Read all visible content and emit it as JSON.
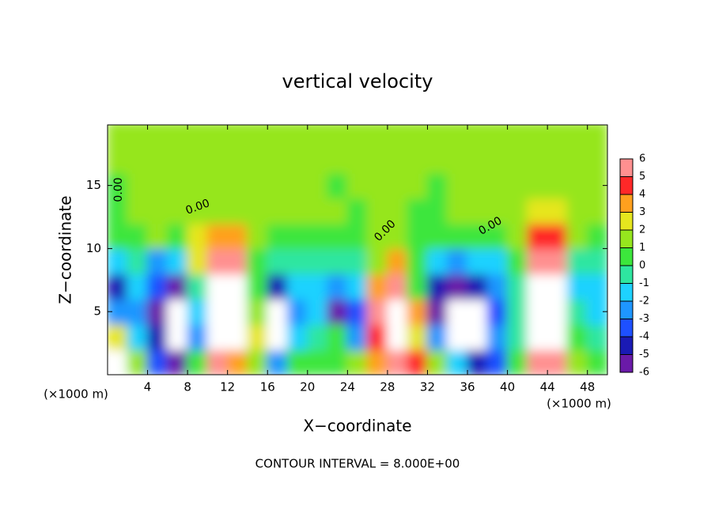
{
  "chart_data": {
    "type": "heatmap",
    "title": "vertical velocity",
    "x_label": "X−coordinate",
    "y_label": "Z−coordinate",
    "x_unit": "(×1000 m)",
    "y_unit": "(×1000 m)",
    "footer": "CONTOUR INTERVAL = 8.000E+00",
    "contour_label": "0.00",
    "x": [
      1,
      3,
      5,
      7,
      9,
      11,
      13,
      15,
      17,
      19,
      21,
      23,
      25,
      27,
      29,
      31,
      33,
      35,
      37,
      39,
      41,
      43,
      45,
      47,
      49
    ],
    "y": [
      1,
      3,
      5,
      7,
      9,
      11,
      13,
      15,
      17,
      19
    ],
    "z": [
      [
        8,
        1,
        -4,
        -6,
        0,
        5,
        3,
        1,
        -3,
        0,
        0,
        0,
        1,
        3,
        5,
        4,
        1,
        -2,
        -5,
        -4,
        0,
        5,
        5,
        1,
        0
      ],
      [
        2,
        -2,
        -5,
        -8,
        -3,
        8,
        8,
        2,
        -8,
        -2,
        -1,
        0,
        -3,
        4,
        8,
        2,
        -3,
        -8,
        -8,
        -3,
        -1,
        8,
        8,
        0,
        -1
      ],
      [
        -3,
        -3,
        -6,
        -8,
        -2,
        8,
        8,
        1,
        -8,
        -3,
        -2,
        -6,
        -4,
        5,
        8,
        3,
        -6,
        -8,
        -8,
        -4,
        -1,
        8,
        8,
        -1,
        -2
      ],
      [
        -5,
        -2,
        -4,
        -6,
        -1,
        8,
        8,
        0,
        -5,
        -2,
        -2,
        -3,
        -2,
        3,
        6,
        0,
        -5,
        -6,
        -5,
        -3,
        -1,
        8,
        8,
        -2,
        -2
      ],
      [
        -2,
        -1,
        -3,
        -2,
        2,
        6,
        6,
        0,
        -1,
        -1,
        -1,
        -1,
        -1,
        1,
        3,
        0,
        -2,
        -3,
        -2,
        -2,
        0,
        6,
        6,
        -1,
        -1
      ],
      [
        0,
        0,
        1,
        0,
        2,
        3,
        3,
        1,
        0,
        0,
        0,
        0,
        0,
        1,
        1,
        0,
        0,
        0,
        0,
        0,
        1,
        4,
        4,
        1,
        0
      ],
      [
        0,
        1,
        1,
        1,
        1,
        1,
        1,
        1,
        1,
        1,
        1,
        1,
        0,
        1,
        1,
        0,
        0,
        1,
        1,
        1,
        1,
        2,
        2,
        1,
        1
      ],
      [
        0,
        1,
        1,
        1,
        1,
        1,
        1,
        1,
        1,
        1,
        1,
        0,
        1,
        1,
        1,
        1,
        0,
        1,
        1,
        1,
        1,
        1,
        1,
        1,
        1
      ],
      [
        1,
        1,
        1,
        1,
        1,
        1,
        1,
        1,
        1,
        1,
        1,
        1,
        1,
        1,
        1,
        1,
        1,
        1,
        1,
        1,
        1,
        1,
        1,
        1,
        1
      ],
      [
        1,
        1,
        1,
        1,
        1,
        1,
        1,
        1,
        1,
        1,
        1,
        1,
        1,
        1,
        1,
        1,
        1,
        1,
        1,
        1,
        1,
        1,
        1,
        1,
        1
      ]
    ],
    "xlim": [
      0,
      50
    ],
    "ylim": [
      0,
      19.8
    ],
    "xticks": [
      4,
      8,
      12,
      16,
      20,
      24,
      28,
      32,
      36,
      40,
      44,
      48
    ],
    "yticks": [
      5,
      10,
      15
    ],
    "colorbar_ticks": [
      -6,
      -5,
      -4,
      -3,
      -2,
      -1,
      0,
      1,
      2,
      3,
      4,
      5,
      6
    ],
    "colors": [
      "#6a1aa8",
      "#1a1ab4",
      "#1e50ff",
      "#1e96ff",
      "#1ed2ff",
      "#2ee6a0",
      "#3ce63c",
      "#96e61e",
      "#e6e61e",
      "#ffa01e",
      "#ff2828",
      "#ff9090"
    ]
  }
}
